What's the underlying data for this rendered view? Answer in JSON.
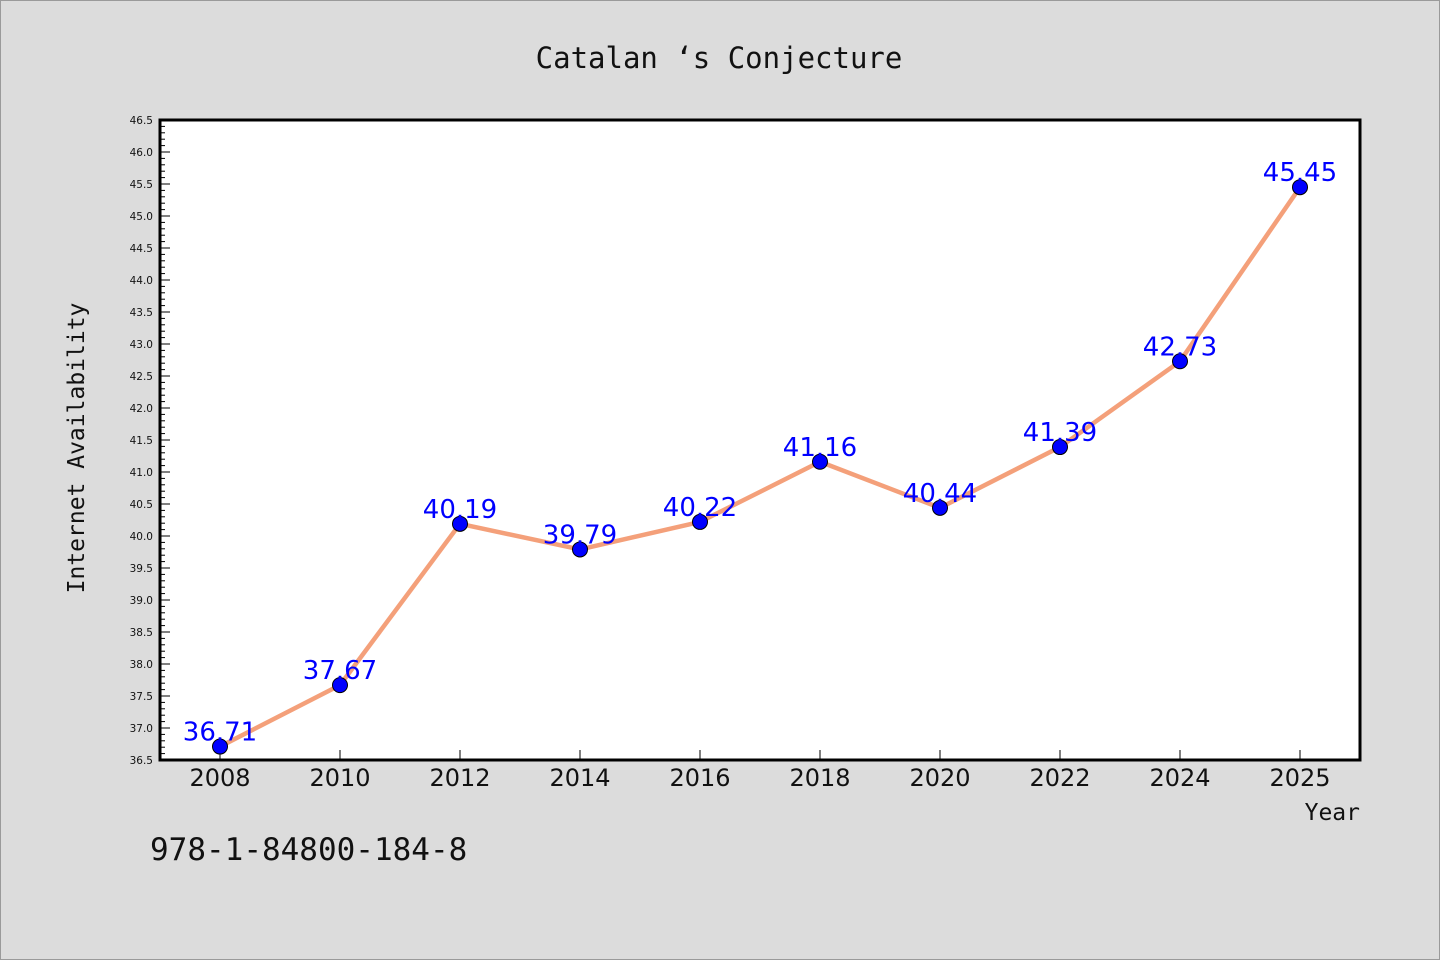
{
  "chart_data": {
    "type": "line",
    "title": "Catalan ‘s Conjecture",
    "xlabel": "Year",
    "ylabel": "Internet Availability",
    "categories": [
      "2008",
      "2010",
      "2012",
      "2014",
      "2016",
      "2018",
      "2020",
      "2022",
      "2024",
      "2025"
    ],
    "values": [
      36.71,
      37.67,
      40.19,
      39.79,
      40.22,
      41.16,
      40.44,
      41.39,
      42.73,
      45.45
    ],
    "data_labels": [
      "36.71",
      "37.67",
      "40.19",
      "39.79",
      "40.22",
      "41.16",
      "40.44",
      "41.39",
      "42.73",
      "45.45"
    ],
    "ylim": [
      36.5,
      46.5
    ],
    "yticks": [
      "36.5",
      "37.0",
      "37.5",
      "38.0",
      "38.5",
      "39.0",
      "39.5",
      "40.0",
      "40.5",
      "41.0",
      "41.5",
      "42.0",
      "42.5",
      "43.0",
      "43.5",
      "44.0",
      "44.5",
      "45.0",
      "45.5",
      "46.0",
      "46.5"
    ],
    "grid": false,
    "line_color": "#f4a07a",
    "marker_color": "#0000ff",
    "label_color": "#0000ff"
  },
  "footer": {
    "isbn": "978-1-84800-184-8"
  }
}
